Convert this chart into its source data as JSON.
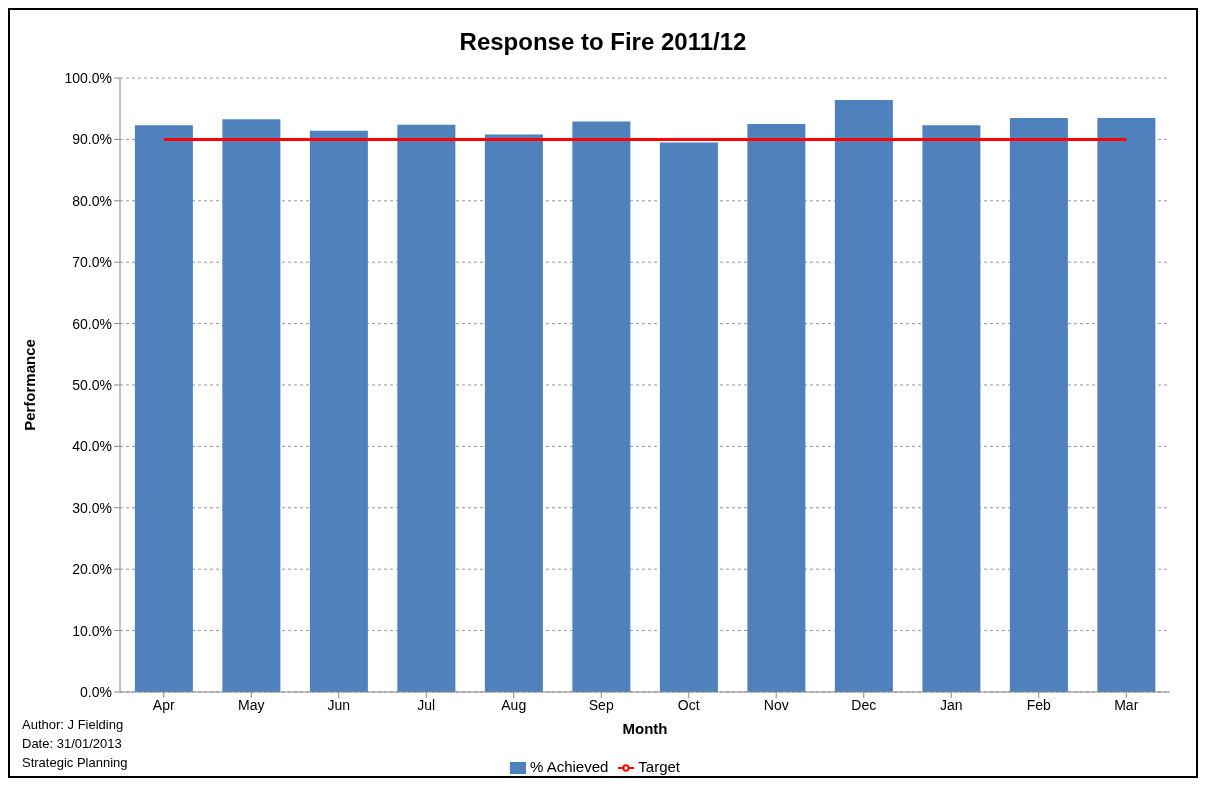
{
  "chart_data": {
    "type": "bar",
    "title": "Response to Fire 2011/12",
    "xlabel": "Month",
    "ylabel": "Performance",
    "categories": [
      "Apr",
      "May",
      "Jun",
      "Jul",
      "Aug",
      "Sep",
      "Oct",
      "Nov",
      "Dec",
      "Jan",
      "Feb",
      "Mar"
    ],
    "series": [
      {
        "name": "% Achieved",
        "color": "#4f81bd",
        "values": [
          92.3,
          93.3,
          91.4,
          92.4,
          90.8,
          92.9,
          89.5,
          92.5,
          96.4,
          92.3,
          93.5,
          93.5
        ]
      },
      {
        "name": "Target",
        "type": "line",
        "color": "#ff0000",
        "marker": "none",
        "values": [
          90,
          90,
          90,
          90,
          90,
          90,
          90,
          90,
          90,
          90,
          90,
          90
        ]
      }
    ],
    "ylim": [
      0,
      100
    ],
    "yticks": [
      {
        "value": 0,
        "label": "0.0%"
      },
      {
        "value": 10,
        "label": "10.0%"
      },
      {
        "value": 20,
        "label": "20.0%"
      },
      {
        "value": 30,
        "label": "30.0%"
      },
      {
        "value": 40,
        "label": "40.0%"
      },
      {
        "value": 50,
        "label": "50.0%"
      },
      {
        "value": 60,
        "label": "60.0%"
      },
      {
        "value": 70,
        "label": "70.0%"
      },
      {
        "value": 80,
        "label": "80.0%"
      },
      {
        "value": 90,
        "label": "90.0%"
      },
      {
        "value": 100,
        "label": "100.0%"
      }
    ],
    "grid": "y",
    "legend": "bottom",
    "annotations": [
      "Author: J Fielding",
      "Date: 31/01/2013",
      "Strategic Planning"
    ]
  }
}
